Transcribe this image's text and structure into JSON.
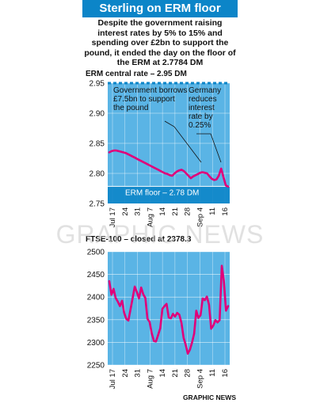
{
  "title": "Sterling on ERM floor",
  "subtitle": "Despite the government raising interest rates by 5% to 15% and spending over £2bn to support the pound, it ended the day on the floor of the ERM at 2.7784 DM",
  "credit": "GRAPHIC NEWS",
  "watermark": "GRAPHIC NEWS",
  "colors": {
    "accent": "#0c85c8",
    "plot_bg": "#5ab4e5",
    "line": "#e0007a"
  },
  "chart_data": [
    {
      "type": "line",
      "ylabel": "ERM central rate – 2.95 DM",
      "ylim": [
        2.75,
        2.95
      ],
      "yticks": [
        "2.95",
        "2.90",
        "2.85",
        "2.80",
        "2.75"
      ],
      "xticks": [
        "Jul 17",
        "24",
        "31",
        "Aug 7",
        "14",
        "21",
        "28",
        "Sep 4",
        "11",
        "16"
      ],
      "reference_lines": [
        {
          "value": 2.95,
          "label": ""
        },
        {
          "value": 2.7784,
          "label": "ERM floor – 2.78 DM"
        }
      ],
      "annotations": [
        "Government borrows £7.5bn to support the pound",
        "Germany reduces interest rate by 0.25%"
      ],
      "series": [
        {
          "values": [
            2.835,
            2.837,
            2.838,
            2.838,
            2.837,
            2.836,
            2.835,
            2.834,
            2.832,
            2.83,
            2.828,
            2.826,
            2.824,
            2.822,
            2.82,
            2.818,
            2.816,
            2.814,
            2.812,
            2.81,
            2.808,
            2.806,
            2.804,
            2.802,
            2.8,
            2.799,
            2.797,
            2.796,
            2.8,
            2.803,
            2.805,
            2.806,
            2.804,
            2.8,
            2.796,
            2.792,
            2.795,
            2.797,
            2.799,
            2.801,
            2.802,
            2.801,
            2.8,
            2.795,
            2.791,
            2.789,
            2.79,
            2.796,
            2.808,
            2.794,
            2.78,
            2.778
          ]
        }
      ]
    },
    {
      "type": "line",
      "ylabel": "FTSE-100 – closed at 2378.3",
      "ylim": [
        2250,
        2500
      ],
      "yticks": [
        "2500",
        "2450",
        "2400",
        "2350",
        "2300",
        "2250"
      ],
      "xticks": [
        "Jul 17",
        "24",
        "31",
        "Aug 7",
        "14",
        "21",
        "28",
        "Sep 4",
        "11",
        "16"
      ],
      "series": [
        {
          "values": [
            2435,
            2405,
            2418,
            2398,
            2390,
            2380,
            2392,
            2365,
            2352,
            2348,
            2373,
            2398,
            2423,
            2411,
            2397,
            2421,
            2406,
            2398,
            2352,
            2345,
            2320,
            2303,
            2302,
            2316,
            2331,
            2374,
            2380,
            2385,
            2355,
            2353,
            2363,
            2357,
            2365,
            2361,
            2343,
            2310,
            2295,
            2275,
            2284,
            2300,
            2319,
            2370,
            2354,
            2360,
            2397,
            2393,
            2401,
            2383,
            2330,
            2337,
            2349,
            2344,
            2349,
            2469,
            2436,
            2370,
            2380
          ]
        }
      ]
    }
  ]
}
